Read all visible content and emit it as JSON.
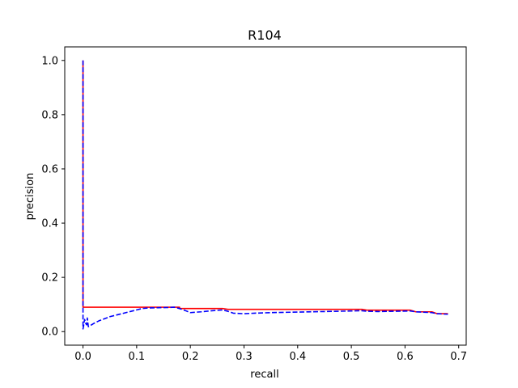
{
  "chart_data": {
    "type": "line",
    "title": "R104",
    "xlabel": "recall",
    "ylabel": "precision",
    "xlim": [
      -0.034,
      0.714
    ],
    "ylim": [
      -0.05,
      1.05
    ],
    "x_ticks": [
      "0.0",
      "0.1",
      "0.2",
      "0.3",
      "0.4",
      "0.5",
      "0.6",
      "0.7"
    ],
    "x_tick_values": [
      0.0,
      0.1,
      0.2,
      0.3,
      0.4,
      0.5,
      0.6,
      0.7
    ],
    "y_ticks": [
      "0.0",
      "0.2",
      "0.4",
      "0.6",
      "0.8",
      "1.0"
    ],
    "y_tick_values": [
      0.0,
      0.2,
      0.4,
      0.6,
      0.8,
      1.0
    ],
    "grid": false,
    "series": [
      {
        "color": "#ff0000",
        "style": "solid",
        "x": [
          0.0,
          0.0,
          0.0,
          0.11,
          0.18,
          0.18,
          0.26,
          0.27,
          0.52,
          0.53,
          0.61,
          0.62,
          0.65,
          0.66,
          0.68
        ],
        "y": [
          1.0,
          0.09,
          0.09,
          0.09,
          0.09,
          0.085,
          0.085,
          0.082,
          0.082,
          0.079,
          0.079,
          0.073,
          0.073,
          0.066,
          0.066
        ]
      },
      {
        "color": "#0000ff",
        "style": "dashed",
        "x": [
          0.0,
          0.0,
          0.0,
          0.001,
          0.003,
          0.005,
          0.007,
          0.008,
          0.01,
          0.02,
          0.03,
          0.05,
          0.07,
          0.09,
          0.1,
          0.11,
          0.12,
          0.14,
          0.16,
          0.17,
          0.18,
          0.19,
          0.2,
          0.22,
          0.24,
          0.26,
          0.27,
          0.28,
          0.3,
          0.32,
          0.35,
          0.4,
          0.45,
          0.5,
          0.52,
          0.53,
          0.55,
          0.58,
          0.61,
          0.62,
          0.65,
          0.66,
          0.68
        ],
        "y": [
          1.0,
          0.03,
          0.01,
          0.02,
          0.045,
          0.03,
          0.025,
          0.05,
          0.018,
          0.03,
          0.04,
          0.055,
          0.065,
          0.075,
          0.08,
          0.085,
          0.087,
          0.088,
          0.089,
          0.09,
          0.085,
          0.078,
          0.07,
          0.073,
          0.077,
          0.08,
          0.075,
          0.068,
          0.066,
          0.068,
          0.07,
          0.072,
          0.074,
          0.076,
          0.077,
          0.075,
          0.074,
          0.075,
          0.076,
          0.073,
          0.07,
          0.066,
          0.064
        ]
      }
    ]
  }
}
